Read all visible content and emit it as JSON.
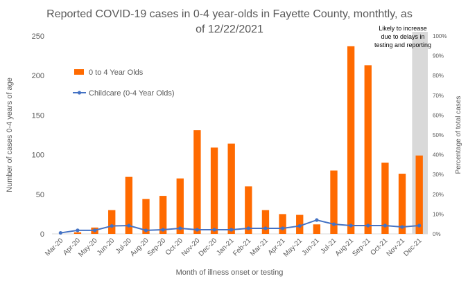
{
  "chart_data": {
    "type": "bar",
    "title_lines": [
      "Reported COVID-19 cases in 0-4 year-olds in Fayette County, monthtly, as",
      "of 12/22/2021"
    ],
    "xlabel": "Month of illness onset or testing",
    "ylabel": "Number of cases 0-4 years of age",
    "y2label": "Percentage of total cases",
    "categories": [
      "Mar-20",
      "Apr-20",
      "May-20",
      "Jun-20",
      "Jul-20",
      "Aug-20",
      "Sep-20",
      "Oct-20",
      "Nov-20",
      "Dec-20",
      "Jan-21",
      "Feb-21",
      "Mar-21",
      "Apr-21",
      "May-21",
      "Jun-21",
      "Jul-21",
      "Aug-21",
      "Sep-21",
      "Oct-21",
      "Nov-21",
      "Dec-21"
    ],
    "ylim": [
      0,
      250
    ],
    "yticks": [
      "0",
      "50",
      "100",
      "150",
      "200",
      "250"
    ],
    "y2lim": [
      0,
      100
    ],
    "y2ticks": [
      "0%",
      "10%",
      "20%",
      "30%",
      "40%",
      "50%",
      "60%",
      "70%",
      "80%",
      "90%",
      "100%"
    ],
    "series": [
      {
        "name": "0 to 4 Year Olds",
        "kind": "bar",
        "color": "#ff6a00",
        "values": [
          0,
          2,
          8,
          30,
          72,
          44,
          48,
          70,
          131,
          109,
          114,
          60,
          30,
          25,
          24,
          12,
          80,
          237,
          213,
          90,
          76,
          99
        ]
      },
      {
        "name": "Childcare (0-4 Year Olds)",
        "kind": "line",
        "axis": "secondary",
        "color": "#4472c4",
        "values": [
          0.5,
          1.8,
          1.8,
          4.0,
          4.2,
          1.8,
          2.1,
          2.8,
          2.1,
          2.1,
          2.1,
          2.8,
          2.8,
          2.8,
          4.0,
          7.0,
          4.9,
          4.2,
          4.2,
          4.2,
          3.5,
          4.2
        ]
      }
    ],
    "annotation": {
      "lines": [
        "Likely to increase",
        "due to delays in",
        "testing and reporting"
      ],
      "band_color": "#d9d9d9"
    },
    "legend_position": "upper-left"
  }
}
